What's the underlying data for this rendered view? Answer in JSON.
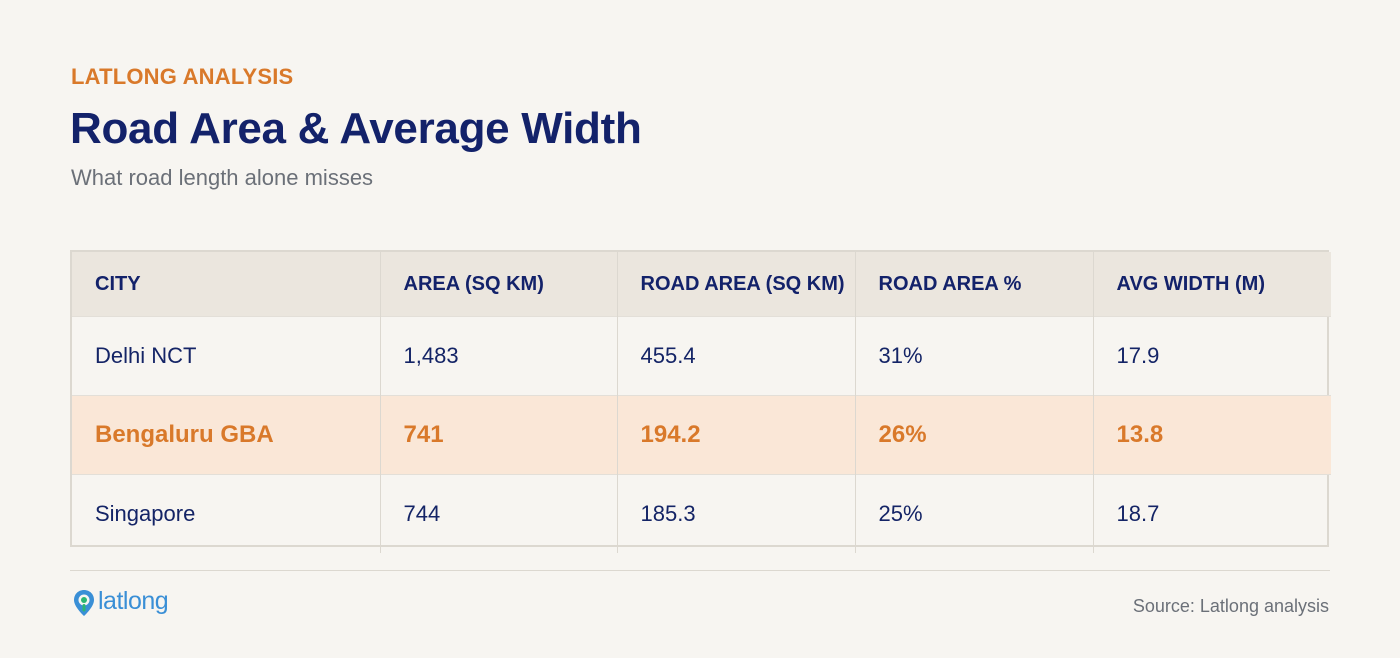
{
  "header": {
    "eyebrow": "LATLONG ANALYSIS",
    "title": "Road Area & Average Width",
    "subtitle": "What road length alone misses"
  },
  "table": {
    "columns": [
      "CITY",
      "AREA (SQ KM)",
      "ROAD AREA (SQ KM)",
      "ROAD AREA %",
      "AVG WIDTH (M)"
    ],
    "rows": [
      [
        "Delhi NCT",
        "1,483",
        "455.4",
        "31%",
        "17.9"
      ],
      [
        "Bengaluru GBA",
        "741",
        "194.2",
        "26%",
        "13.8"
      ],
      [
        "Singapore",
        "744",
        "185.3",
        "25%",
        "18.7"
      ]
    ],
    "highlight_row": 1
  },
  "footer": {
    "logo_text": "latlong",
    "logo_icon": "map-pin-icon",
    "source": "Source: Latlong analysis"
  },
  "colors": {
    "accent": "#d9792a",
    "title": "#13226a",
    "highlight_bg": "#fae7d7",
    "header_bg": "#ebe6de"
  }
}
